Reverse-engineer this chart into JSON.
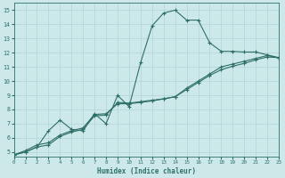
{
  "xlabel": "Humidex (Indice chaleur)",
  "xlim": [
    0,
    23
  ],
  "ylim": [
    4.7,
    15.5
  ],
  "xticks": [
    0,
    1,
    2,
    3,
    4,
    5,
    6,
    7,
    8,
    9,
    10,
    11,
    12,
    13,
    14,
    15,
    16,
    17,
    18,
    19,
    20,
    21,
    22,
    23
  ],
  "yticks": [
    5,
    6,
    7,
    8,
    9,
    10,
    11,
    12,
    13,
    14,
    15
  ],
  "bg_color": "#cde8e8",
  "grid_color": "#aacfcf",
  "line_color": "#2e7068",
  "lines": [
    {
      "x": [
        0,
        1,
        2,
        3,
        4,
        5,
        6,
        7,
        8,
        9,
        10,
        11,
        12,
        13,
        14,
        15,
        16,
        17,
        18,
        19,
        20,
        21,
        22,
        23
      ],
      "y": [
        4.8,
        5.0,
        5.35,
        6.5,
        7.25,
        6.6,
        6.5,
        7.7,
        7.0,
        9.0,
        8.2,
        11.3,
        13.9,
        14.8,
        15.0,
        14.3,
        14.3,
        12.7,
        12.1,
        12.1,
        12.05,
        12.05,
        11.85,
        11.65
      ]
    },
    {
      "x": [
        0,
        1,
        2,
        3,
        4,
        5,
        6,
        7,
        8,
        9,
        10,
        11,
        12,
        13,
        14,
        15,
        16,
        17,
        18,
        19,
        20,
        21,
        22,
        23
      ],
      "y": [
        4.8,
        5.0,
        5.35,
        5.5,
        6.1,
        6.4,
        6.6,
        7.55,
        7.6,
        8.5,
        8.45,
        8.55,
        8.65,
        8.75,
        8.9,
        9.4,
        9.9,
        10.4,
        10.8,
        11.05,
        11.25,
        11.5,
        11.7,
        11.65
      ]
    },
    {
      "x": [
        0,
        1,
        2,
        3,
        4,
        5,
        6,
        7,
        8,
        9,
        10,
        11,
        12,
        13,
        14,
        15,
        16,
        17,
        18,
        19,
        20,
        21,
        22,
        23
      ],
      "y": [
        4.8,
        5.1,
        5.5,
        5.65,
        6.2,
        6.5,
        6.7,
        7.65,
        7.7,
        8.4,
        8.4,
        8.5,
        8.6,
        8.75,
        8.9,
        9.5,
        10.0,
        10.5,
        11.0,
        11.2,
        11.4,
        11.6,
        11.8,
        11.65
      ]
    }
  ]
}
